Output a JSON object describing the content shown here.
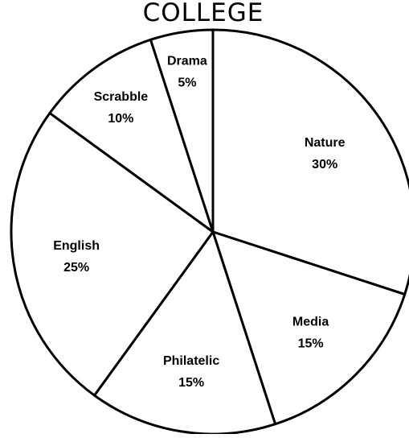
{
  "chart_data": {
    "type": "pie",
    "title": "COLLEGE",
    "slices": [
      {
        "label": "Nature",
        "value": 30,
        "value_label": "30%"
      },
      {
        "label": "Media",
        "value": 15,
        "value_label": "15%"
      },
      {
        "label": "Philatelic",
        "value": 15,
        "value_label": "15%"
      },
      {
        "label": "English",
        "value": 25,
        "value_label": "25%"
      },
      {
        "label": "Scrabble",
        "value": 10,
        "value_label": "10%"
      },
      {
        "label": "Drama",
        "value": 5,
        "value_label": "5%"
      }
    ],
    "start_angle": "12 o'clock",
    "direction": "clockwise",
    "fill_color": "#ffffff",
    "stroke_color": "#000000",
    "legend": "none"
  }
}
